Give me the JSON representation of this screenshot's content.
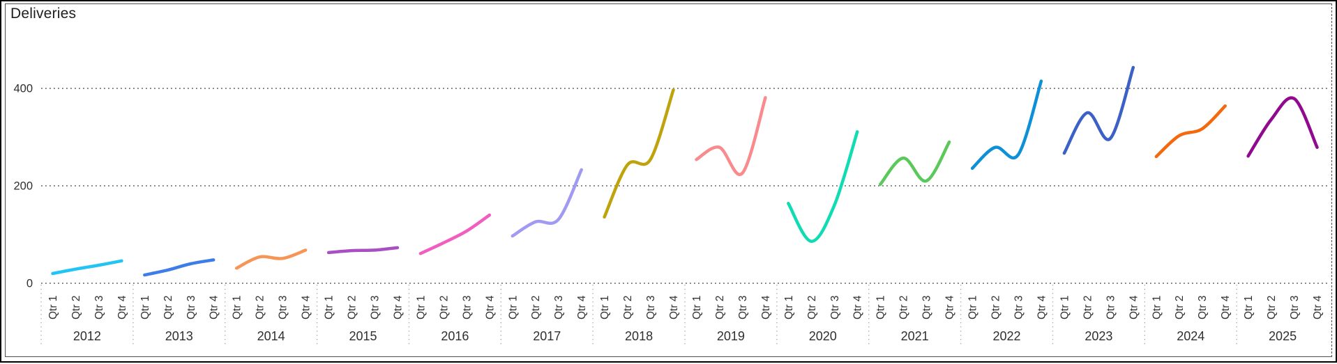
{
  "frame": {
    "background": "#ffffff",
    "outer_border_color": "#000000",
    "inner_border_color": "#4d4d4d"
  },
  "chart": {
    "title": "Deliveries",
    "axis_text_color": "#2f2f2f",
    "grid_color": "#6f6f6f",
    "separator_color": "#adadad",
    "y_axis": {
      "ticks": [
        {
          "label": "0",
          "value": 0
        },
        {
          "label": "200",
          "value": 200
        },
        {
          "label": "400",
          "value": 400
        }
      ]
    }
  },
  "chart_data": {
    "type": "line",
    "title": "Deliveries",
    "layout": "each series (year) plotted in its own side-by-side x segment, smooth spline, no markers, no legend",
    "categories": [
      "Qtr 1",
      "Qtr 2",
      "Qtr 3",
      "Qtr 4"
    ],
    "x_group_labels": [
      "2012",
      "2013",
      "2014",
      "2015",
      "2016",
      "2017",
      "2018",
      "2019",
      "2020",
      "2021",
      "2022",
      "2023",
      "2024",
      "2025"
    ],
    "xlabel": "",
    "ylabel": "",
    "ylim": [
      0,
      460
    ],
    "y_ticks": [
      0,
      200,
      400
    ],
    "grid": "horizontal-dotted",
    "legend": "none",
    "series": [
      {
        "name": "2012",
        "color": "#22c4f4",
        "values": [
          20,
          29,
          37,
          46
        ]
      },
      {
        "name": "2013",
        "color": "#3e7de8",
        "values": [
          17,
          27,
          40,
          48
        ]
      },
      {
        "name": "2014",
        "color": "#f79556",
        "values": [
          31,
          54,
          51,
          68
        ]
      },
      {
        "name": "2015",
        "color": "#a84fc4",
        "values": [
          63,
          67,
          68,
          73
        ]
      },
      {
        "name": "2016",
        "color": "#f15ec0",
        "values": [
          61,
          83,
          107,
          140
        ]
      },
      {
        "name": "2017",
        "color": "#a09af2",
        "values": [
          97,
          126,
          131,
          233
        ]
      },
      {
        "name": "2018",
        "color": "#bfa30d",
        "values": [
          136,
          243,
          254,
          397
        ]
      },
      {
        "name": "2019",
        "color": "#f98b8e",
        "values": [
          254,
          279,
          226,
          381
        ]
      },
      {
        "name": "2020",
        "color": "#10dcb3",
        "values": [
          164,
          86,
          160,
          311
        ]
      },
      {
        "name": "2021",
        "color": "#5ac85a",
        "values": [
          203,
          257,
          210,
          290
        ]
      },
      {
        "name": "2022",
        "color": "#0d90d8",
        "values": [
          236,
          279,
          264,
          415
        ]
      },
      {
        "name": "2023",
        "color": "#3c61c6",
        "values": [
          267,
          350,
          297,
          443
        ]
      },
      {
        "name": "2024",
        "color": "#f4690d",
        "values": [
          260,
          303,
          317,
          364
        ]
      },
      {
        "name": "2025",
        "color": "#90098f",
        "values": [
          261,
          336,
          379,
          279
        ]
      }
    ]
  }
}
